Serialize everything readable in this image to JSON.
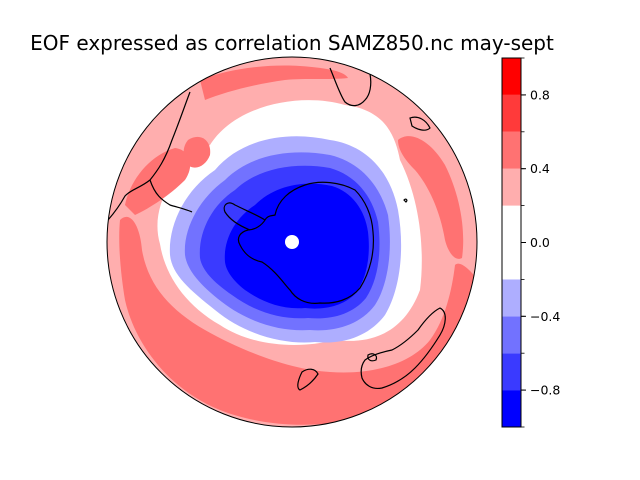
{
  "figure": {
    "title": "EOF expressed as correlation SAMZ850.nc may-sept"
  },
  "map": {
    "projection": "south-polar-stereographic",
    "field": "correlation",
    "pattern": "negative (blue) over Antarctica, positive (red) ring at mid-latitudes"
  },
  "colorbar": {
    "range": [
      -1.0,
      1.0
    ],
    "levels": [
      -1.0,
      -0.8,
      -0.6,
      -0.4,
      -0.2,
      0.2,
      0.4,
      0.6,
      0.8,
      1.0
    ],
    "bands": [
      {
        "from": -1.0,
        "to": -0.8,
        "color": "#0000ff"
      },
      {
        "from": -0.8,
        "to": -0.6,
        "color": "#3a3aff"
      },
      {
        "from": -0.6,
        "to": -0.4,
        "color": "#7272ff"
      },
      {
        "from": -0.4,
        "to": -0.2,
        "color": "#aeaeff"
      },
      {
        "from": -0.2,
        "to": 0.2,
        "color": "#ffffff"
      },
      {
        "from": 0.2,
        "to": 0.4,
        "color": "#ffaeae"
      },
      {
        "from": 0.4,
        "to": 0.6,
        "color": "#ff7272"
      },
      {
        "from": 0.6,
        "to": 0.8,
        "color": "#ff3a3a"
      },
      {
        "from": 0.8,
        "to": 1.0,
        "color": "#ff0000"
      }
    ],
    "tick_values": [
      0.8,
      0.4,
      0.0,
      -0.4,
      -0.8
    ],
    "tick_labels": [
      "0.8",
      "0.4",
      "0.0",
      "−0.4",
      "−0.8"
    ]
  }
}
